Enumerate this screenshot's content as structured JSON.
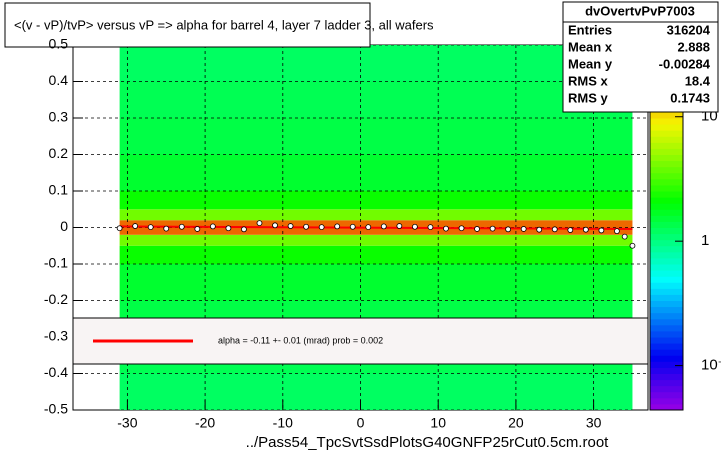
{
  "chart_data": {
    "type": "heatmap",
    "title": "<(v - vP)/tvP> versus   vP => alpha for barrel 4, layer 7 ladder 3, all wafers",
    "footer": "../Pass54_TpcSvtSsdPlotsG40GNFP25rCut0.5cm.root",
    "xlim": [
      -37,
      37
    ],
    "ylim": [
      -0.5,
      0.5
    ],
    "xticks": [
      -30,
      -20,
      -10,
      0,
      10,
      20,
      30
    ],
    "yticks": [
      -0.5,
      -0.4,
      -0.3,
      -0.2,
      -0.1,
      0,
      0.1,
      0.2,
      0.3,
      0.4,
      0.5
    ],
    "grid": true,
    "log_z": true,
    "zlim": [
      0.044,
      37.7
    ],
    "zticks": [
      {
        "value": 0.1,
        "label": "10⁻¹"
      },
      1,
      10
    ],
    "hist": {
      "xrange": [
        -31,
        35
      ],
      "ybins": [
        -0.5,
        -0.4,
        -0.3,
        -0.2,
        -0.1,
        -0.05,
        -0.02,
        0.02,
        0.05,
        0.1,
        0.2,
        0.3,
        0.4,
        0.5
      ],
      "counts": [
        1.2,
        1.3,
        1.4,
        1.6,
        2.2,
        4,
        20,
        4,
        2.2,
        1.6,
        1.4,
        1.3,
        1.2
      ]
    },
    "profile": {
      "x": [
        -31,
        -29,
        -27,
        -25,
        -23,
        -21,
        -19,
        -17,
        -15,
        -13,
        -11,
        -9,
        -7,
        -5,
        -3,
        -1,
        1,
        3,
        5,
        7,
        9,
        11,
        13,
        15,
        17,
        19,
        21,
        23,
        25,
        27,
        29,
        31,
        33,
        34,
        35
      ],
      "values": [
        -0.002,
        0.004,
        0.001,
        -0.003,
        0.002,
        -0.004,
        0.003,
        -0.002,
        -0.005,
        0.012,
        0.006,
        0.004,
        0.002,
        0.001,
        0.003,
        0.002,
        0.001,
        0.003,
        0.004,
        0.002,
        0.001,
        -0.003,
        -0.002,
        -0.004,
        -0.003,
        -0.005,
        -0.004,
        -0.006,
        -0.005,
        -0.007,
        -0.006,
        -0.008,
        -0.01,
        -0.025,
        -0.05
      ]
    },
    "fit": {
      "x": [
        -31,
        35
      ],
      "values": [
        0.003,
        -0.004
      ],
      "color": "#ff0000"
    },
    "legend": {
      "label": "alpha =   -0.11 +-  0.01 (mrad) prob = 0.002",
      "color": "#ff0000"
    },
    "stats": {
      "title": "dvOvertvPvP7003",
      "rows": [
        {
          "name": "Entries",
          "value": 316204
        },
        {
          "name": "Mean x",
          "value": 2.888
        },
        {
          "name": "Mean y",
          "value": -0.00284
        },
        {
          "name": "RMS x",
          "value": 18.4
        },
        {
          "name": "RMS y",
          "value": 0.1743
        }
      ]
    }
  }
}
